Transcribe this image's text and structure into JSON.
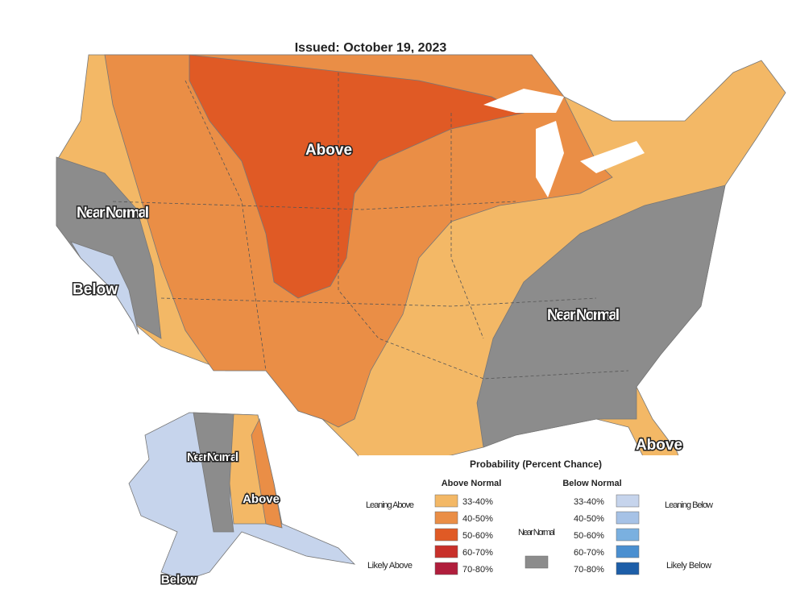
{
  "header": {
    "issued": "Issued: October 19, 2023"
  },
  "map_labels": {
    "conus_above": "Above",
    "west_near_normal": "Near Normal",
    "west_below": "Below",
    "east_near_normal": "Near Normal",
    "florida_above": "Above",
    "alaska_near_normal": "Near Normal",
    "alaska_above": "Above",
    "alaska_below": "Below"
  },
  "legend": {
    "title": "Probability (Percent Chance)",
    "above_heading": "Above Normal",
    "below_heading": "Below Normal",
    "near_normal": "Near Normal",
    "leaning_above": "Leaning Above",
    "likely_above": "Likely Above",
    "leaning_below": "Leaning Below",
    "likely_below": "Likely Below",
    "above": [
      {
        "label": "33-40%",
        "color": "#f3b866"
      },
      {
        "label": "40-50%",
        "color": "#ea8e46"
      },
      {
        "label": "50-60%",
        "color": "#e05a25"
      },
      {
        "label": "60-70%",
        "color": "#c8302a"
      },
      {
        "label": "70-80%",
        "color": "#b01e3c"
      }
    ],
    "below": [
      {
        "label": "33-40%",
        "color": "#c6d4ec"
      },
      {
        "label": "40-50%",
        "color": "#a6c2e6"
      },
      {
        "label": "50-60%",
        "color": "#7ab0e0"
      },
      {
        "label": "60-70%",
        "color": "#4a8fd0"
      },
      {
        "label": "70-80%",
        "color": "#1d5ea8"
      }
    ],
    "near_color": "#8c8c8c"
  }
}
